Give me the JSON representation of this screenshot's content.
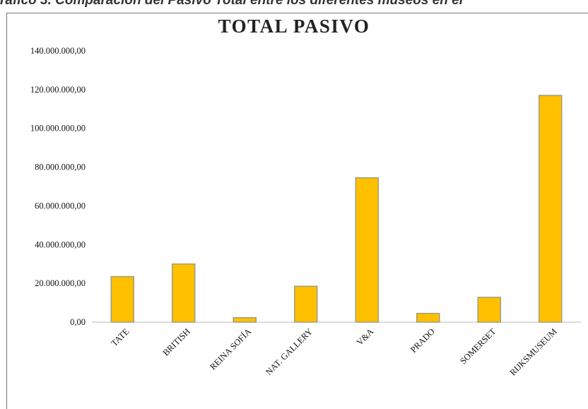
{
  "caption": "ráfico 3. Comparación del Pasivo Total entre los diferentes museos en el",
  "chart_data": {
    "type": "bar",
    "title": "TOTAL PASIVO",
    "xlabel": "",
    "ylabel": "",
    "categories": [
      "TATE",
      "BRITISH",
      "REINA SOFÍA",
      "NAT. GALLERY",
      "V&A",
      "PRADO",
      "SOMERSET",
      "RIJKSMUSEUM"
    ],
    "series": [
      {
        "values": [
          23500000,
          30000000,
          2300000,
          18500000,
          74500000,
          4500000,
          12800000,
          117000000
        ]
      }
    ],
    "ylim": [
      0,
      140000000
    ],
    "yticks": [
      0,
      20000000,
      40000000,
      60000000,
      80000000,
      100000000,
      120000000,
      140000000
    ],
    "ytick_labels": [
      "0,00",
      "20.000.000,00",
      "40.000.000,00",
      "60.000.000,00",
      "80.000.000,00",
      "100.000.000,00",
      "120.000.000,00",
      "140.000.000,00"
    ],
    "grid": false,
    "bar_color": "#FFC000",
    "bar_edge_color": "#9E9E7E"
  }
}
